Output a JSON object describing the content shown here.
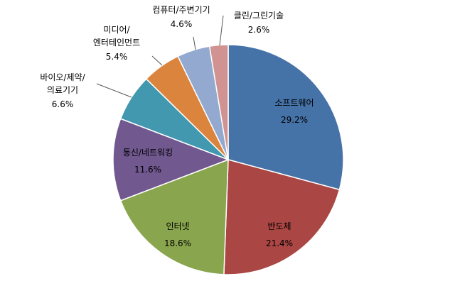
{
  "chart_data": {
    "type": "pie",
    "start": "12 o'clock",
    "direction": "clockwise",
    "slices": [
      {
        "label": "소프트웨어",
        "label_lines": [
          "소프트웨어"
        ],
        "value": 29.2,
        "value_label": "29.2%",
        "color": "#4572a7",
        "label_placement": "inside"
      },
      {
        "label": "반도체",
        "label_lines": [
          "반도체"
        ],
        "value": 21.4,
        "value_label": "21.4%",
        "color": "#aa4643",
        "label_placement": "inside"
      },
      {
        "label": "인터넷",
        "label_lines": [
          "인터넷"
        ],
        "value": 18.6,
        "value_label": "18.6%",
        "color": "#89a54e",
        "label_placement": "inside"
      },
      {
        "label": "통신/네트워킹",
        "label_lines": [
          "통신/네트워킹"
        ],
        "value": 11.6,
        "value_label": "11.6%",
        "color": "#71588f",
        "label_placement": "inside"
      },
      {
        "label": "바이오/제약/의료기기",
        "label_lines": [
          "바이오/제약/",
          "의료기기"
        ],
        "value": 6.6,
        "value_label": "6.6%",
        "color": "#4198af",
        "label_placement": "outside"
      },
      {
        "label": "미디어/엔터테인먼트",
        "label_lines": [
          "미디어/",
          "엔터테인먼트"
        ],
        "value": 5.4,
        "value_label": "5.4%",
        "color": "#db843d",
        "label_placement": "outside"
      },
      {
        "label": "컴퓨터/주변기기",
        "label_lines": [
          "컴퓨터/주변기기"
        ],
        "value": 4.6,
        "value_label": "4.6%",
        "color": "#93a9cf",
        "label_placement": "outside"
      },
      {
        "label": "클린/그린기술",
        "label_lines": [
          "클린/그린기술"
        ],
        "value": 2.6,
        "value_label": "2.6%",
        "color": "#d19392",
        "label_placement": "outside"
      }
    ]
  }
}
